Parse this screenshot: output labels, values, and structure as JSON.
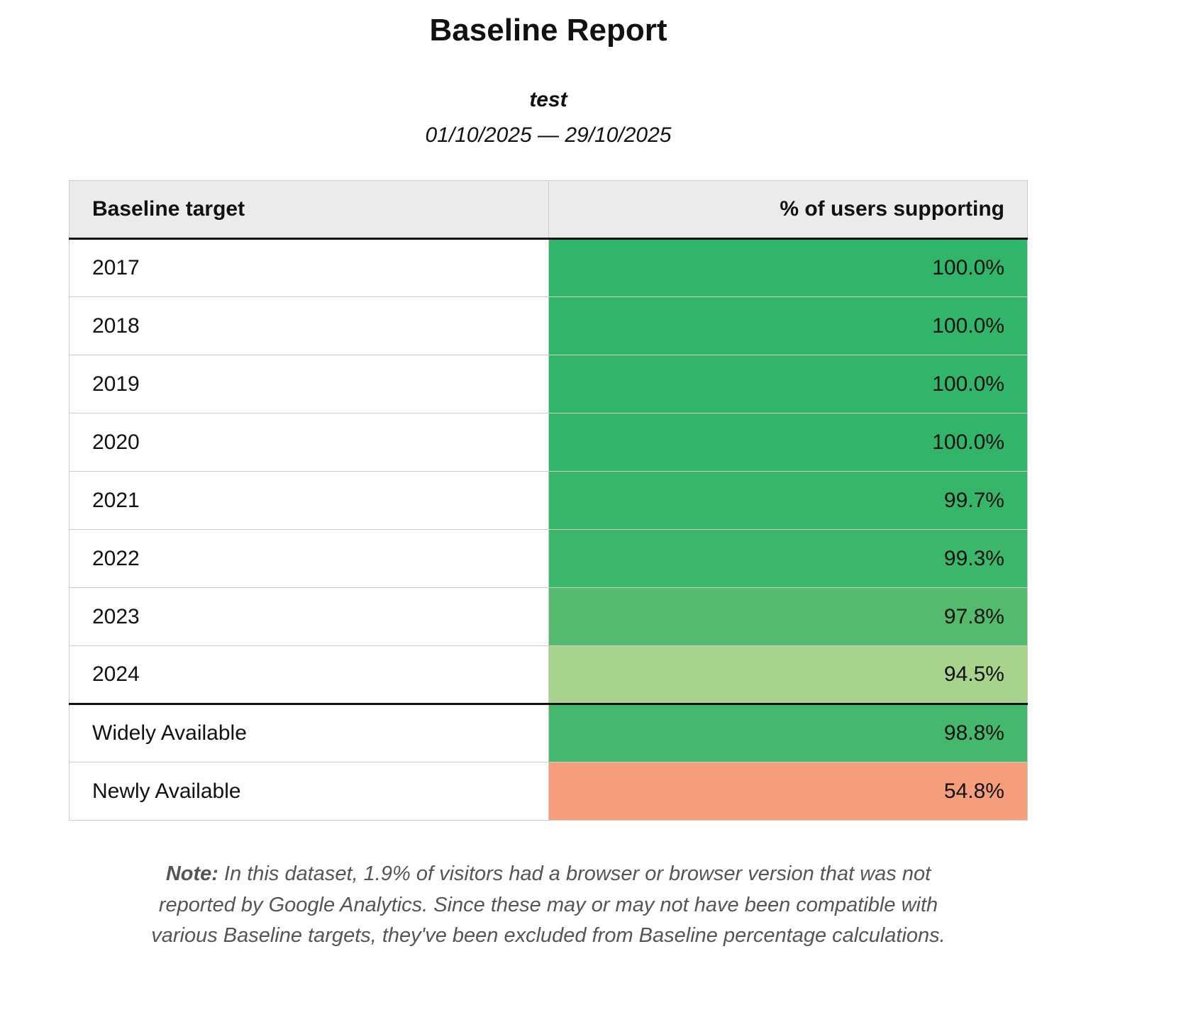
{
  "page": {
    "title": "Baseline Report",
    "subtitle": "test",
    "date_range": "01/10/2025 — 29/10/2025"
  },
  "table": {
    "headers": {
      "target": "Baseline target",
      "percent": "% of users supporting"
    },
    "rows": [
      {
        "target": "2017",
        "percent": "100.0%",
        "color": "#31b56a"
      },
      {
        "target": "2018",
        "percent": "100.0%",
        "color": "#31b56a"
      },
      {
        "target": "2019",
        "percent": "100.0%",
        "color": "#31b56a"
      },
      {
        "target": "2020",
        "percent": "100.0%",
        "color": "#31b56a"
      },
      {
        "target": "2021",
        "percent": "99.7%",
        "color": "#36b66b"
      },
      {
        "target": "2022",
        "percent": "99.3%",
        "color": "#3bb76c"
      },
      {
        "target": "2023",
        "percent": "97.8%",
        "color": "#53ba6e"
      },
      {
        "target": "2024",
        "percent": "94.5%",
        "color": "#a7d38c"
      },
      {
        "target": "Widely Available",
        "percent": "98.8%",
        "color": "#44b86d"
      },
      {
        "target": "Newly Available",
        "percent": "54.8%",
        "color": "#f69d7c"
      }
    ]
  },
  "note": {
    "label": "Note:",
    "text": " In this dataset, 1.9% of visitors had a browser or browser version that was not reported by Google Analytics. Since these may or may not have been compatible with various Baseline targets, they've been excluded from Baseline percentage calculations."
  }
}
